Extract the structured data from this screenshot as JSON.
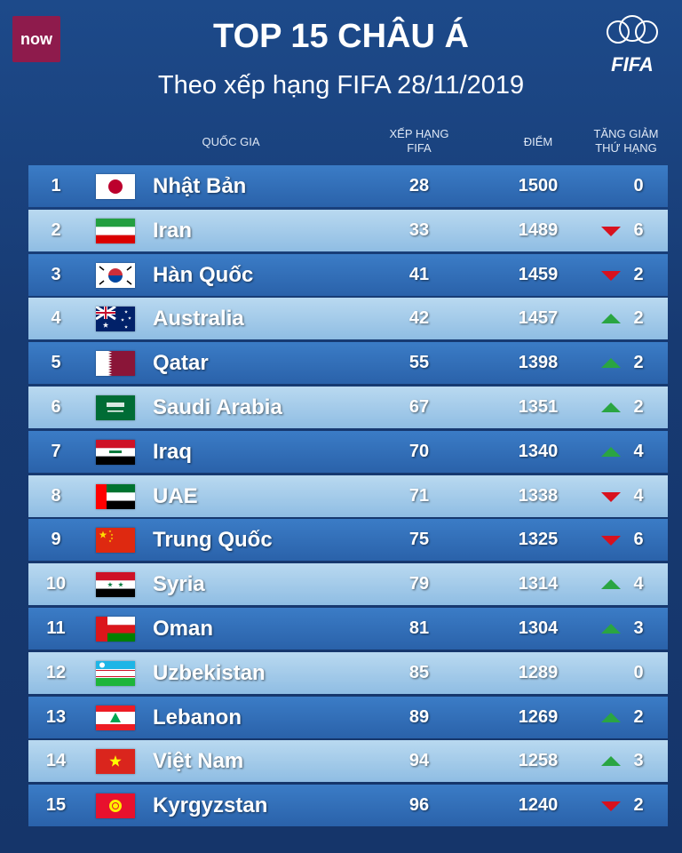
{
  "header": {
    "logo": "now",
    "title": "TOP 15 CHÂU Á",
    "subtitle": "Theo xếp hạng FIFA 28/11/2019",
    "fifa_logo": "FIFA"
  },
  "table": {
    "columns": {
      "country": "QUỐC GIA",
      "fifa_rank": [
        "XẾP HẠNG",
        "FIFA"
      ],
      "points": "ĐIỂM",
      "change": [
        "TĂNG GIẢM",
        "THỨ HẠNG"
      ]
    },
    "rows": [
      {
        "rank": 1,
        "country": "Nhật Bản",
        "fifa_rank": 28,
        "points": 1500,
        "change": 0,
        "direction": "none"
      },
      {
        "rank": 2,
        "country": "Iran",
        "fifa_rank": 33,
        "points": 1489,
        "change": 6,
        "direction": "down"
      },
      {
        "rank": 3,
        "country": "Hàn Quốc",
        "fifa_rank": 41,
        "points": 1459,
        "change": 2,
        "direction": "down"
      },
      {
        "rank": 4,
        "country": "Australia",
        "fifa_rank": 42,
        "points": 1457,
        "change": 2,
        "direction": "up"
      },
      {
        "rank": 5,
        "country": "Qatar",
        "fifa_rank": 55,
        "points": 1398,
        "change": 2,
        "direction": "up"
      },
      {
        "rank": 6,
        "country": "Saudi Arabia",
        "fifa_rank": 67,
        "points": 1351,
        "change": 2,
        "direction": "up"
      },
      {
        "rank": 7,
        "country": "Iraq",
        "fifa_rank": 70,
        "points": 1340,
        "change": 4,
        "direction": "up"
      },
      {
        "rank": 8,
        "country": "UAE",
        "fifa_rank": 71,
        "points": 1338,
        "change": 4,
        "direction": "down"
      },
      {
        "rank": 9,
        "country": "Trung Quốc",
        "fifa_rank": 75,
        "points": 1325,
        "change": 6,
        "direction": "down"
      },
      {
        "rank": 10,
        "country": "Syria",
        "fifa_rank": 79,
        "points": 1314,
        "change": 4,
        "direction": "up"
      },
      {
        "rank": 11,
        "country": "Oman",
        "fifa_rank": 81,
        "points": 1304,
        "change": 3,
        "direction": "up"
      },
      {
        "rank": 12,
        "country": "Uzbekistan",
        "fifa_rank": 85,
        "points": 1289,
        "change": 0,
        "direction": "none"
      },
      {
        "rank": 13,
        "country": "Lebanon",
        "fifa_rank": 89,
        "points": 1269,
        "change": 2,
        "direction": "up"
      },
      {
        "rank": 14,
        "country": "Việt Nam",
        "fifa_rank": 94,
        "points": 1258,
        "change": 3,
        "direction": "up"
      },
      {
        "rank": 15,
        "country": "Kyrgyzstan",
        "fifa_rank": 96,
        "points": 1240,
        "change": 2,
        "direction": "down"
      }
    ]
  }
}
